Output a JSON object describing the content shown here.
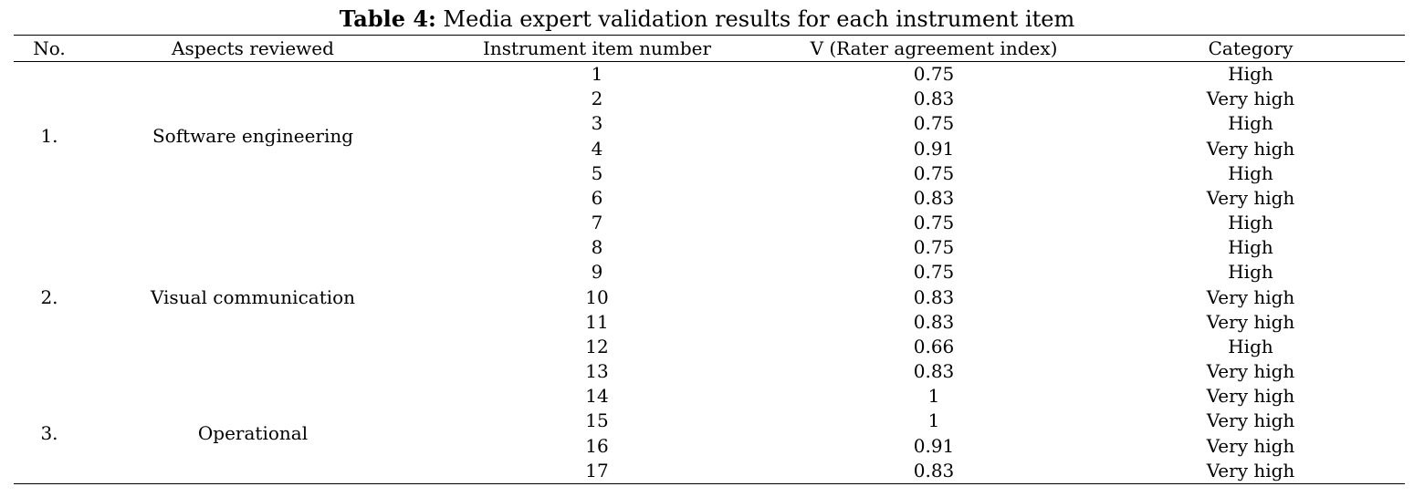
{
  "caption": {
    "label": "Table 4:",
    "text": " Media expert validation results for each instrument item"
  },
  "headers": {
    "no": "No.",
    "aspect": "Aspects reviewed",
    "item": "Instrument item number",
    "v": "V (Rater agreement index)",
    "category": "Category"
  },
  "groups": [
    {
      "no": "1.",
      "aspect": "Software engineering"
    },
    {
      "no": "2.",
      "aspect": "Visual communication"
    },
    {
      "no": "3.",
      "aspect": "Operational"
    }
  ],
  "rows": [
    {
      "item": "1",
      "v": "0.75",
      "category": "High"
    },
    {
      "item": "2",
      "v": "0.83",
      "category": "Very high"
    },
    {
      "item": "3",
      "v": "0.75",
      "category": "High"
    },
    {
      "item": "4",
      "v": "0.91",
      "category": "Very high"
    },
    {
      "item": "5",
      "v": "0.75",
      "category": "High"
    },
    {
      "item": "6",
      "v": "0.83",
      "category": "Very high"
    },
    {
      "item": "7",
      "v": "0.75",
      "category": "High"
    },
    {
      "item": "8",
      "v": "0.75",
      "category": "High"
    },
    {
      "item": "9",
      "v": "0.75",
      "category": "High"
    },
    {
      "item": "10",
      "v": "0.83",
      "category": "Very high"
    },
    {
      "item": "11",
      "v": "0.83",
      "category": "Very high"
    },
    {
      "item": "12",
      "v": "0.66",
      "category": "High"
    },
    {
      "item": "13",
      "v": "0.83",
      "category": "Very high"
    },
    {
      "item": "14",
      "v": "1",
      "category": "Very high"
    },
    {
      "item": "15",
      "v": "1",
      "category": "Very high"
    },
    {
      "item": "16",
      "v": "0.91",
      "category": "Very high"
    },
    {
      "item": "17",
      "v": "0.83",
      "category": "Very high"
    }
  ]
}
